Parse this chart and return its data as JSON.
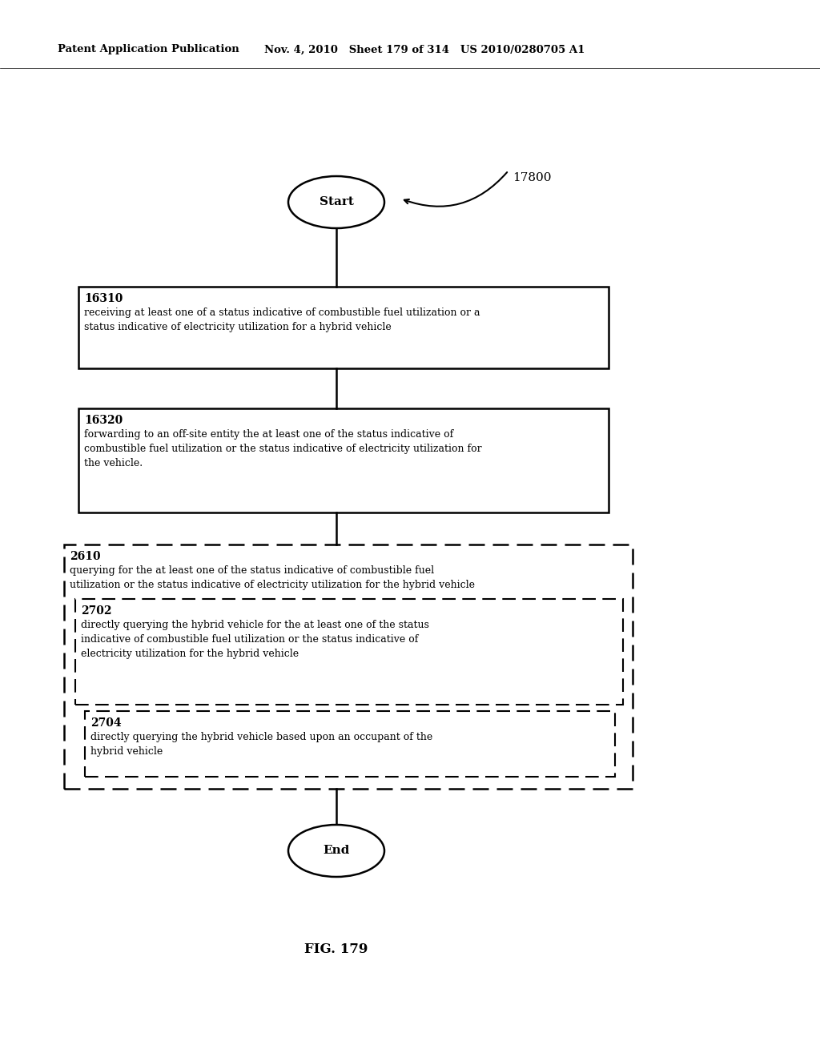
{
  "header_left": "Patent Application Publication",
  "header_mid": "Nov. 4, 2010   Sheet 179 of 314   US 2010/0280705 A1",
  "fig_label": "FIG. 179",
  "diagram_label": "17800",
  "start_label": "Start",
  "end_label": "End",
  "box1_id": "16310",
  "box1_line1": "receiving at least one of a status indicative of combustible fuel utilization or a",
  "box1_line2": "status indicative of electricity utilization for a hybrid vehicle",
  "box2_id": "16320",
  "box2_line1": "forwarding to an off-site entity the at least one of the status indicative of",
  "box2_line2": "combustible fuel utilization or the status indicative of electricity utilization for",
  "box2_line3": "the vehicle.",
  "dbox1_id": "2610",
  "dbox1_line1": "querying for the at least one of the status indicative of combustible fuel",
  "dbox1_line2": "utilization or the status indicative of electricity utilization for the hybrid vehicle",
  "dbox2_id": "2702",
  "dbox2_line1": "directly querying the hybrid vehicle for the at least one of the status",
  "dbox2_line2": "indicative of combustible fuel utilization or the status indicative of",
  "dbox2_line3": "electricity utilization for the hybrid vehicle",
  "dbox3_id": "2704",
  "dbox3_line1": "directly querying the hybrid vehicle based upon an occupant of the",
  "dbox3_line2": "hybrid vehicle",
  "bg_color": "#ffffff",
  "text_color": "#000000"
}
